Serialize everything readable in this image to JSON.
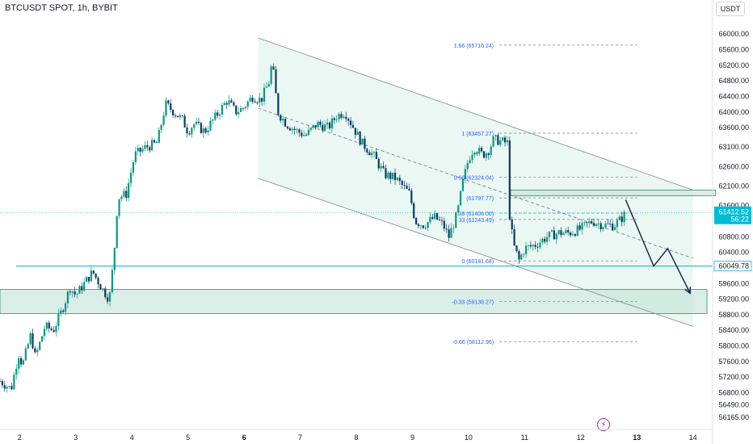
{
  "header": {
    "symbol_label": "BTCUSDT SPOT, 1h, BYBIT",
    "currency": "USDT"
  },
  "chart_data": {
    "type": "candlestick",
    "ylim": [
      55900,
      66500
    ],
    "x_domain": [
      1.65,
      14.35
    ],
    "y_ticks": [
      {
        "value": 66000,
        "label": "66000.00"
      },
      {
        "value": 65600,
        "label": "65600.00"
      },
      {
        "value": 65200,
        "label": "65200.00"
      },
      {
        "value": 64800,
        "label": "64800.00"
      },
      {
        "value": 64400,
        "label": "64400.00"
      },
      {
        "value": 64000,
        "label": "64000.00"
      },
      {
        "value": 63600,
        "label": "63600.00"
      },
      {
        "value": 63100,
        "label": "63100.00"
      },
      {
        "value": 62600,
        "label": "62600.00"
      },
      {
        "value": 62100,
        "label": "62100.00"
      },
      {
        "value": 61600,
        "label": "61600.00"
      },
      {
        "value": 60800,
        "label": "60800.00"
      },
      {
        "value": 60400,
        "label": "60400.00"
      },
      {
        "value": 59600,
        "label": "59600.00"
      },
      {
        "value": 59200,
        "label": "59200.00"
      },
      {
        "value": 58800,
        "label": "58800.00"
      },
      {
        "value": 58400,
        "label": "58400.00"
      },
      {
        "value": 58000,
        "label": "58000.00"
      },
      {
        "value": 57600,
        "label": "57600.00"
      },
      {
        "value": 57200,
        "label": "57200.00"
      },
      {
        "value": 56800,
        "label": "56800.00"
      },
      {
        "value": 56490,
        "label": "56490.00"
      },
      {
        "value": 56165,
        "label": "56165.00"
      }
    ],
    "x_ticks": [
      {
        "value": 2,
        "label": "2",
        "bold": false
      },
      {
        "value": 3,
        "label": "3",
        "bold": false
      },
      {
        "value": 4,
        "label": "4",
        "bold": false
      },
      {
        "value": 5,
        "label": "5",
        "bold": false
      },
      {
        "value": 6,
        "label": "6",
        "bold": true
      },
      {
        "value": 7,
        "label": "7",
        "bold": false
      },
      {
        "value": 8,
        "label": "8",
        "bold": false
      },
      {
        "value": 9,
        "label": "9",
        "bold": false
      },
      {
        "value": 10,
        "label": "10",
        "bold": false
      },
      {
        "value": 11,
        "label": "11",
        "bold": false
      },
      {
        "value": 12,
        "label": "12",
        "bold": false
      },
      {
        "value": 13,
        "label": "13",
        "bold": true
      },
      {
        "value": 14,
        "label": "14",
        "bold": false
      }
    ],
    "price_path": [
      [
        1.65,
        57100
      ],
      [
        1.85,
        56900
      ],
      [
        1.98,
        57800
      ],
      [
        2.05,
        57500
      ],
      [
        2.2,
        58300
      ],
      [
        2.28,
        57700
      ],
      [
        2.45,
        58500
      ],
      [
        2.6,
        58400
      ],
      [
        2.75,
        58900
      ],
      [
        2.9,
        59500
      ],
      [
        3.0,
        59300
      ],
      [
        3.15,
        59600
      ],
      [
        3.3,
        59900
      ],
      [
        3.5,
        59400
      ],
      [
        3.6,
        59200
      ],
      [
        3.68,
        60300
      ],
      [
        3.75,
        61800
      ],
      [
        3.9,
        61900
      ],
      [
        4.05,
        62900
      ],
      [
        4.25,
        63100
      ],
      [
        4.45,
        63200
      ],
      [
        4.6,
        64200
      ],
      [
        4.75,
        64000
      ],
      [
        4.9,
        63800
      ],
      [
        5.0,
        63500
      ],
      [
        5.1,
        63700
      ],
      [
        5.3,
        63500
      ],
      [
        5.5,
        63900
      ],
      [
        5.7,
        64300
      ],
      [
        5.85,
        64000
      ],
      [
        5.98,
        64100
      ],
      [
        6.15,
        64400
      ],
      [
        6.3,
        64300
      ],
      [
        6.45,
        64800
      ],
      [
        6.5,
        65300
      ],
      [
        6.6,
        64000
      ],
      [
        6.75,
        63700
      ],
      [
        6.95,
        63500
      ],
      [
        7.1,
        63400
      ],
      [
        7.3,
        63700
      ],
      [
        7.5,
        63600
      ],
      [
        7.65,
        63900
      ],
      [
        7.8,
        64000
      ],
      [
        7.95,
        63600
      ],
      [
        8.1,
        63200
      ],
      [
        8.3,
        62900
      ],
      [
        8.5,
        62400
      ],
      [
        8.7,
        62300
      ],
      [
        8.95,
        61900
      ],
      [
        9.05,
        61200
      ],
      [
        9.2,
        61100
      ],
      [
        9.4,
        61300
      ],
      [
        9.55,
        61100
      ],
      [
        9.65,
        60800
      ],
      [
        9.8,
        61400
      ],
      [
        9.9,
        62200
      ],
      [
        10.0,
        62800
      ],
      [
        10.1,
        63100
      ],
      [
        10.25,
        62900
      ],
      [
        10.35,
        63000
      ],
      [
        10.45,
        63300
      ],
      [
        10.7,
        63200
      ],
      [
        10.72,
        61500
      ],
      [
        10.8,
        60600
      ],
      [
        10.9,
        60200
      ],
      [
        11.0,
        60500
      ],
      [
        11.2,
        60600
      ],
      [
        11.4,
        60800
      ],
      [
        11.6,
        60900
      ],
      [
        11.8,
        60900
      ],
      [
        12.0,
        61000
      ],
      [
        12.2,
        61200
      ],
      [
        12.4,
        61100
      ],
      [
        12.6,
        61100
      ],
      [
        12.75,
        61300
      ],
      [
        12.8,
        61412.52
      ]
    ],
    "channel": {
      "upper": [
        [
          6.25,
          65900
        ],
        [
          14.0,
          62000
        ]
      ],
      "lower": [
        [
          6.25,
          62300
        ],
        [
          14.0,
          58500
        ]
      ],
      "mid": [
        [
          6.25,
          64100
        ],
        [
          14.0,
          60250
        ]
      ]
    },
    "zones": [
      {
        "name": "resistance",
        "x": [
          10.75,
          14.4
        ],
        "y": [
          61850,
          62000
        ]
      },
      {
        "name": "support",
        "x": [
          1.65,
          14.25
        ],
        "y": [
          58830,
          59450
        ]
      }
    ],
    "horizontal_line": {
      "value": 60049.78,
      "label": "60049.78"
    },
    "current_price": {
      "value": 61412.52,
      "label": "61412.52",
      "countdown": "56:22"
    },
    "fib_levels": [
      {
        "ratio": "1.66",
        "label": "1.66 (65716.24)",
        "price": 65716.24
      },
      {
        "ratio": "1",
        "label": "1 (63457.27)",
        "price": 63457.27
      },
      {
        "ratio": "0.66",
        "label": "0.66 (62324.04)",
        "price": 62324.04
      },
      {
        "ratio": "0.5",
        "label": "(61797.77)",
        "price": 61797.77
      },
      {
        "ratio": "0.38",
        "label": "38 (61406.00)",
        "price": 61406.0
      },
      {
        "ratio": "0.33",
        "label": "33 (61243.49)",
        "price": 61243.49
      },
      {
        "ratio": "0",
        "label": "0 (60181.68)",
        "price": 60181.68
      },
      {
        "ratio": "-0.33",
        "label": "-0.33 (59138.27)",
        "price": 59138.27
      },
      {
        "ratio": "-0.66",
        "label": "-0.66 (58112.96)",
        "price": 58112.96
      }
    ],
    "projection_path": [
      [
        12.8,
        61750
      ],
      [
        13.3,
        60050
      ],
      [
        13.55,
        60500
      ],
      [
        13.95,
        59350
      ]
    ],
    "colors": {
      "up": "#089981",
      "down": "#0b3a66",
      "channel_fill": "#e3f4ee",
      "zone": "#bfe3d5",
      "zone_stroke": "#3d8a72",
      "line": "#00bcd4",
      "fib": "#2962ff",
      "arrow": "#0b1f4d"
    }
  }
}
